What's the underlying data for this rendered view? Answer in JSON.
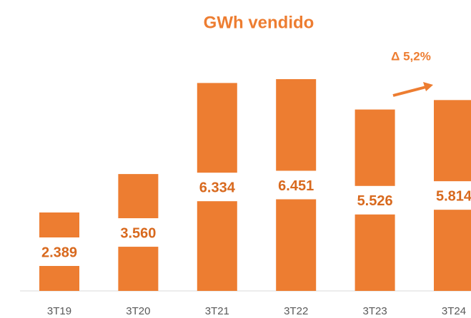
{
  "chart_data": {
    "type": "bar",
    "title": "GWh vendido",
    "categories": [
      "3T19",
      "3T20",
      "3T21",
      "3T22",
      "3T23",
      "3T24"
    ],
    "values": [
      2389,
      3560,
      6334,
      6451,
      5526,
      5814
    ],
    "value_labels": [
      "2.389",
      "3.560",
      "6.334",
      "6.451",
      "5.526",
      "5.814"
    ],
    "color": "#ed7d31",
    "annotation": "Δ 5,2%"
  }
}
